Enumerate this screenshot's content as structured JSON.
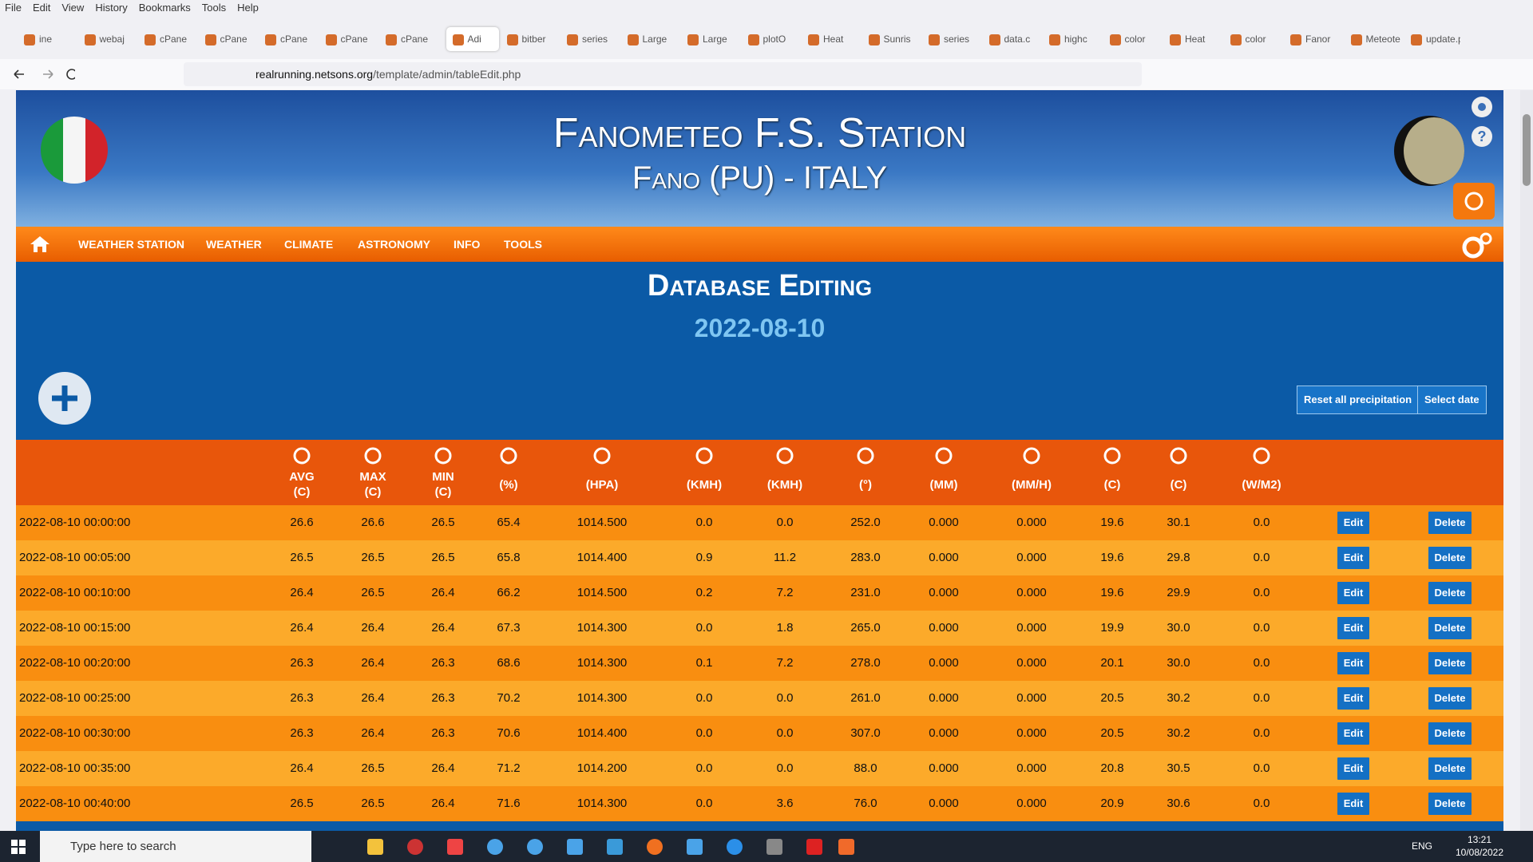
{
  "browser": {
    "menu": [
      "File",
      "Edit",
      "View",
      "History",
      "Bookmarks",
      "Tools",
      "Help"
    ],
    "tabs": [
      "ine",
      "webaj",
      "cPane",
      "cPane",
      "cPane",
      "cPane",
      "cPane",
      "Adi",
      "bitber",
      "series",
      "Large",
      "Large",
      "plotO",
      "Heat",
      "Sunris",
      "series",
      "data.c",
      "highc",
      "color",
      "Heat",
      "color",
      "Fanor",
      "Meteotem",
      "update.ph"
    ],
    "url_host": "realrunning.netsons.org",
    "url_path": "/template/admin/tableEdit.php"
  },
  "header": {
    "title": "Fanometeo F.S. Station",
    "subtitle": "Fano (PU) - ITALY"
  },
  "nav": [
    "WEATHER STATION",
    "WEATHER",
    "CLIMATE",
    "ASTRONOMY",
    "INFO",
    "TOOLS"
  ],
  "page": {
    "title": "Database Editing",
    "date": "2022-08-10",
    "buttons": [
      "Reset all precipitation",
      "Select date"
    ]
  },
  "table": {
    "headers": [
      {
        "label": "AVG",
        "unit": "(C)"
      },
      {
        "label": "MAX",
        "unit": "(C)"
      },
      {
        "label": "MIN",
        "unit": "(C)"
      },
      {
        "unit": "(%)"
      },
      {
        "unit": "(HPA)"
      },
      {
        "unit": "(KMH)"
      },
      {
        "unit": "(KMH)"
      },
      {
        "unit": "(°)"
      },
      {
        "unit": "(MM)"
      },
      {
        "unit": "(MM/H)"
      },
      {
        "unit": "(C)"
      },
      {
        "unit": "(C)"
      },
      {
        "unit": "(W/M2)"
      }
    ],
    "edit_label": "Edit",
    "delete_label": "Delete",
    "rows": [
      [
        "2022-08-10 00:00:00",
        "26.6",
        "26.6",
        "26.5",
        "65.4",
        "1014.500",
        "0.0",
        "0.0",
        "252.0",
        "0.000",
        "0.000",
        "19.6",
        "30.1",
        "0.0"
      ],
      [
        "2022-08-10 00:05:00",
        "26.5",
        "26.5",
        "26.5",
        "65.8",
        "1014.400",
        "0.9",
        "11.2",
        "283.0",
        "0.000",
        "0.000",
        "19.6",
        "29.8",
        "0.0"
      ],
      [
        "2022-08-10 00:10:00",
        "26.4",
        "26.5",
        "26.4",
        "66.2",
        "1014.500",
        "0.2",
        "7.2",
        "231.0",
        "0.000",
        "0.000",
        "19.6",
        "29.9",
        "0.0"
      ],
      [
        "2022-08-10 00:15:00",
        "26.4",
        "26.4",
        "26.4",
        "67.3",
        "1014.300",
        "0.0",
        "1.8",
        "265.0",
        "0.000",
        "0.000",
        "19.9",
        "30.0",
        "0.0"
      ],
      [
        "2022-08-10 00:20:00",
        "26.3",
        "26.4",
        "26.3",
        "68.6",
        "1014.300",
        "0.1",
        "7.2",
        "278.0",
        "0.000",
        "0.000",
        "20.1",
        "30.0",
        "0.0"
      ],
      [
        "2022-08-10 00:25:00",
        "26.3",
        "26.4",
        "26.3",
        "70.2",
        "1014.300",
        "0.0",
        "0.0",
        "261.0",
        "0.000",
        "0.000",
        "20.5",
        "30.2",
        "0.0"
      ],
      [
        "2022-08-10 00:30:00",
        "26.3",
        "26.4",
        "26.3",
        "70.6",
        "1014.400",
        "0.0",
        "0.0",
        "307.0",
        "0.000",
        "0.000",
        "20.5",
        "30.2",
        "0.0"
      ],
      [
        "2022-08-10 00:35:00",
        "26.4",
        "26.5",
        "26.4",
        "71.2",
        "1014.200",
        "0.0",
        "0.0",
        "88.0",
        "0.000",
        "0.000",
        "20.8",
        "30.5",
        "0.0"
      ],
      [
        "2022-08-10 00:40:00",
        "26.5",
        "26.5",
        "26.4",
        "71.6",
        "1014.300",
        "0.0",
        "3.6",
        "76.0",
        "0.000",
        "0.000",
        "20.9",
        "30.6",
        "0.0"
      ]
    ]
  },
  "taskbar": {
    "search": "Type here to search",
    "lang": "ENG",
    "time": "13:21",
    "date": "10/08/2022"
  }
}
